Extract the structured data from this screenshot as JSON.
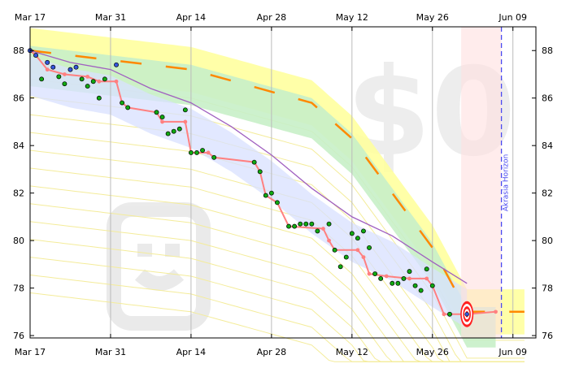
{
  "chart_data": {
    "type": "scatter",
    "title": "",
    "xlabel": "",
    "ylabel": "",
    "x_ticks": [
      "Mar 17",
      "Mar 31",
      "Apr 14",
      "Apr 28",
      "May 12",
      "May 26",
      "Jun 09"
    ],
    "y_ticks": [
      76,
      78,
      80,
      82,
      84,
      86,
      88
    ],
    "xlim": [
      "Mar 17",
      "Jun 13"
    ],
    "ylim": [
      75.9,
      89.0
    ],
    "grid": "vertical",
    "horizon": {
      "label": "Akrasia Horizon",
      "date": "Jun 07",
      "color": "#4a4af0"
    },
    "colors": {
      "road_band": "#ffff99",
      "road_line": "#ff8800",
      "safe_band": "#d8e0ff",
      "green_zone": "#c8f0c8",
      "steps_line": "#ff8080",
      "moving_avg": "#a060c0",
      "point_on_track": "#11aa11",
      "point_above": "#3355dd",
      "target_ring": "#ff2020"
    },
    "watermarks": {
      "amount": "$0",
      "icon": "smiley-face"
    },
    "road": [
      {
        "x": "Mar 17",
        "y": 88.0
      },
      {
        "x": "Apr 14",
        "y": 87.2
      },
      {
        "x": "May 05",
        "y": 85.8
      },
      {
        "x": "May 12",
        "y": 84.3
      },
      {
        "x": "May 26",
        "y": 79.7
      },
      {
        "x": "Jun 01",
        "y": 77.0
      },
      {
        "x": "Jun 11",
        "y": 77.0
      }
    ],
    "moving_average": [
      {
        "x": "Mar 17",
        "y": 88.0
      },
      {
        "x": "Mar 24",
        "y": 87.5
      },
      {
        "x": "Mar 31",
        "y": 87.2
      },
      {
        "x": "Apr 07",
        "y": 86.4
      },
      {
        "x": "Apr 14",
        "y": 85.8
      },
      {
        "x": "Apr 21",
        "y": 84.8
      },
      {
        "x": "Apr 28",
        "y": 83.6
      },
      {
        "x": "May 05",
        "y": 82.2
      },
      {
        "x": "May 12",
        "y": 81.0
      },
      {
        "x": "May 19",
        "y": 80.2
      },
      {
        "x": "May 26",
        "y": 79.1
      },
      {
        "x": "Jun 01",
        "y": 78.2
      }
    ],
    "aggregated_steps": [
      {
        "x": "Mar 17",
        "y": 88.0
      },
      {
        "x": "Mar 18",
        "y": 87.8
      },
      {
        "x": "Mar 20",
        "y": 87.2
      },
      {
        "x": "Mar 23",
        "y": 87.0
      },
      {
        "x": "Mar 27",
        "y": 86.9
      },
      {
        "x": "Mar 29",
        "y": 86.7
      },
      {
        "x": "Apr 01",
        "y": 86.7
      },
      {
        "x": "Apr 02",
        "y": 85.8
      },
      {
        "x": "Apr 03",
        "y": 85.6
      },
      {
        "x": "Apr 08",
        "y": 85.4
      },
      {
        "x": "Apr 09",
        "y": 85.0
      },
      {
        "x": "Apr 13",
        "y": 85.0
      },
      {
        "x": "Apr 14",
        "y": 83.7
      },
      {
        "x": "Apr 17",
        "y": 83.7
      },
      {
        "x": "Apr 18",
        "y": 83.5
      },
      {
        "x": "Apr 25",
        "y": 83.3
      },
      {
        "x": "Apr 26",
        "y": 82.9
      },
      {
        "x": "Apr 27",
        "y": 81.9
      },
      {
        "x": "Apr 29",
        "y": 81.6
      },
      {
        "x": "May 01",
        "y": 80.6
      },
      {
        "x": "May 07",
        "y": 80.5
      },
      {
        "x": "May 08",
        "y": 80.0
      },
      {
        "x": "May 09",
        "y": 79.6
      },
      {
        "x": "May 13",
        "y": 79.6
      },
      {
        "x": "May 14",
        "y": 79.3
      },
      {
        "x": "May 15",
        "y": 78.6
      },
      {
        "x": "May 18",
        "y": 78.5
      },
      {
        "x": "May 22",
        "y": 78.4
      },
      {
        "x": "May 25",
        "y": 78.4
      },
      {
        "x": "May 26",
        "y": 78.1
      },
      {
        "x": "May 28",
        "y": 76.9
      },
      {
        "x": "Jun 01",
        "y": 76.9
      },
      {
        "x": "Jun 06",
        "y": 77.0
      }
    ],
    "datapoints": [
      {
        "x": "Mar 17",
        "y": 88.0,
        "status": "above"
      },
      {
        "x": "Mar 18",
        "y": 87.8,
        "status": "above"
      },
      {
        "x": "Mar 19",
        "y": 86.8,
        "status": "on_track"
      },
      {
        "x": "Mar 20",
        "y": 87.5,
        "status": "above"
      },
      {
        "x": "Mar 21",
        "y": 87.3,
        "status": "above"
      },
      {
        "x": "Mar 22",
        "y": 86.9,
        "status": "on_track"
      },
      {
        "x": "Mar 23",
        "y": 86.6,
        "status": "on_track"
      },
      {
        "x": "Mar 24",
        "y": 87.2,
        "status": "above"
      },
      {
        "x": "Mar 25",
        "y": 87.3,
        "status": "above"
      },
      {
        "x": "Mar 26",
        "y": 86.8,
        "status": "on_track"
      },
      {
        "x": "Mar 27",
        "y": 86.5,
        "status": "on_track"
      },
      {
        "x": "Mar 28",
        "y": 86.7,
        "status": "on_track"
      },
      {
        "x": "Mar 29",
        "y": 86.0,
        "status": "on_track"
      },
      {
        "x": "Mar 30",
        "y": 86.8,
        "status": "on_track"
      },
      {
        "x": "Apr 01",
        "y": 87.4,
        "status": "above"
      },
      {
        "x": "Apr 02",
        "y": 85.8,
        "status": "on_track"
      },
      {
        "x": "Apr 03",
        "y": 85.6,
        "status": "on_track"
      },
      {
        "x": "Apr 08",
        "y": 85.4,
        "status": "on_track"
      },
      {
        "x": "Apr 09",
        "y": 85.2,
        "status": "on_track"
      },
      {
        "x": "Apr 10",
        "y": 84.5,
        "status": "on_track"
      },
      {
        "x": "Apr 11",
        "y": 84.6,
        "status": "on_track"
      },
      {
        "x": "Apr 12",
        "y": 84.7,
        "status": "on_track"
      },
      {
        "x": "Apr 13",
        "y": 85.5,
        "status": "on_track"
      },
      {
        "x": "Apr 14",
        "y": 83.7,
        "status": "on_track"
      },
      {
        "x": "Apr 15",
        "y": 83.7,
        "status": "on_track"
      },
      {
        "x": "Apr 16",
        "y": 83.8,
        "status": "on_track"
      },
      {
        "x": "Apr 18",
        "y": 83.5,
        "status": "on_track"
      },
      {
        "x": "Apr 25",
        "y": 83.3,
        "status": "on_track"
      },
      {
        "x": "Apr 26",
        "y": 82.9,
        "status": "on_track"
      },
      {
        "x": "Apr 27",
        "y": 81.9,
        "status": "on_track"
      },
      {
        "x": "Apr 28",
        "y": 82.0,
        "status": "on_track"
      },
      {
        "x": "Apr 29",
        "y": 81.6,
        "status": "on_track"
      },
      {
        "x": "May 01",
        "y": 80.6,
        "status": "on_track"
      },
      {
        "x": "May 02",
        "y": 80.6,
        "status": "on_track"
      },
      {
        "x": "May 03",
        "y": 80.7,
        "status": "on_track"
      },
      {
        "x": "May 04",
        "y": 80.7,
        "status": "on_track"
      },
      {
        "x": "May 05",
        "y": 80.7,
        "status": "on_track"
      },
      {
        "x": "May 06",
        "y": 80.4,
        "status": "on_track"
      },
      {
        "x": "May 08",
        "y": 80.7,
        "status": "on_track"
      },
      {
        "x": "May 09",
        "y": 79.6,
        "status": "on_track"
      },
      {
        "x": "May 10",
        "y": 78.9,
        "status": "on_track"
      },
      {
        "x": "May 11",
        "y": 79.3,
        "status": "on_track"
      },
      {
        "x": "May 12",
        "y": 80.3,
        "status": "on_track"
      },
      {
        "x": "May 13",
        "y": 80.1,
        "status": "on_track"
      },
      {
        "x": "May 14",
        "y": 80.4,
        "status": "on_track"
      },
      {
        "x": "May 15",
        "y": 79.7,
        "status": "on_track"
      },
      {
        "x": "May 16",
        "y": 78.6,
        "status": "on_track"
      },
      {
        "x": "May 17",
        "y": 78.4,
        "status": "on_track"
      },
      {
        "x": "May 19",
        "y": 78.2,
        "status": "on_track"
      },
      {
        "x": "May 20",
        "y": 78.2,
        "status": "on_track"
      },
      {
        "x": "May 21",
        "y": 78.4,
        "status": "on_track"
      },
      {
        "x": "May 22",
        "y": 78.7,
        "status": "on_track"
      },
      {
        "x": "May 23",
        "y": 78.1,
        "status": "on_track"
      },
      {
        "x": "May 24",
        "y": 77.9,
        "status": "on_track"
      },
      {
        "x": "May 25",
        "y": 78.8,
        "status": "on_track"
      },
      {
        "x": "May 26",
        "y": 78.1,
        "status": "on_track"
      },
      {
        "x": "May 29",
        "y": 76.9,
        "status": "on_track"
      },
      {
        "x": "Jun 01",
        "y": 76.9,
        "status": "above"
      }
    ],
    "target": {
      "x": "Jun 01",
      "y": 76.9
    }
  }
}
